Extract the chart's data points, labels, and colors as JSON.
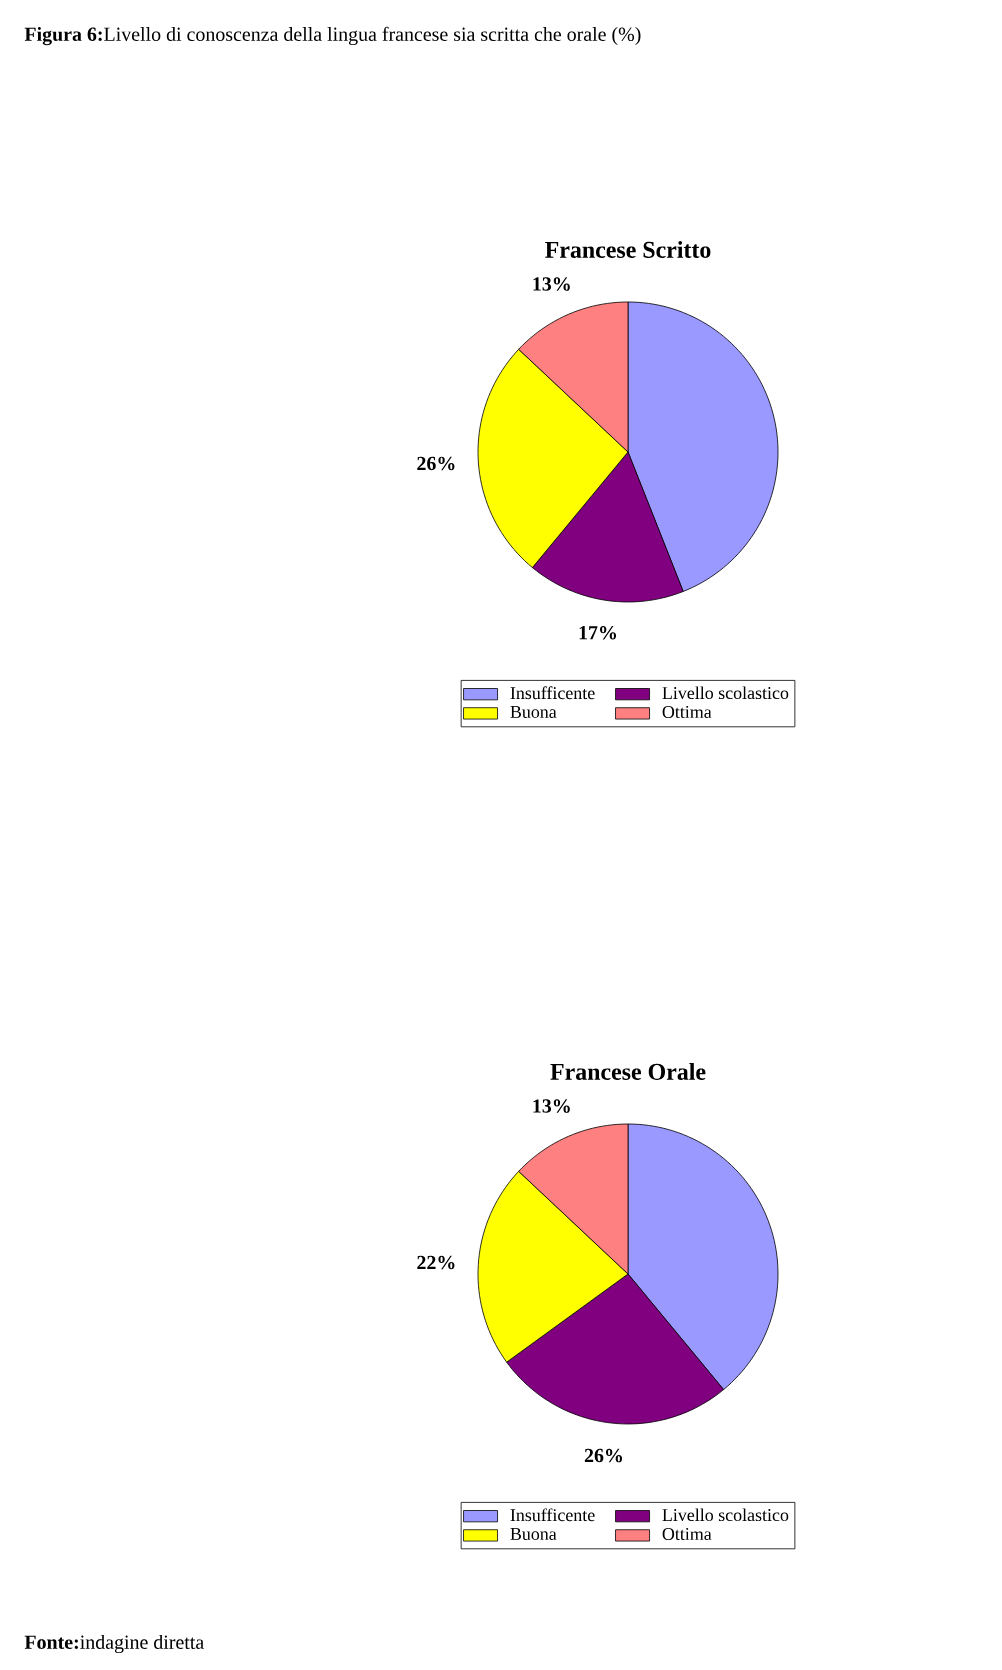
{
  "chart_data": [
    {
      "type": "pie",
      "title": "Francese Scritto",
      "categories": [
        "Insufficente",
        "Livello scolastico",
        "Buona",
        "Ottima"
      ],
      "values": [
        44,
        17,
        26,
        13
      ],
      "value_labels": [
        null,
        "17%",
        "26%",
        "13%"
      ],
      "colors": [
        "#9999ff",
        "#800080",
        "#ffff00",
        "#ff8080"
      ],
      "legend": "bottom",
      "annotations": [
        "**Figura 6:**Livello di conoscenza della lingua francese sia scritta che orale (%)"
      ]
    },
    {
      "type": "pie",
      "title": "Francese Orale",
      "categories": [
        "Insufficente",
        "Livello scolastico",
        "Buona",
        "Ottima"
      ],
      "values": [
        39,
        26,
        22,
        13
      ],
      "value_labels": [
        null,
        "26%",
        "22%",
        "13%"
      ],
      "colors": [
        "#9999ff",
        "#800080",
        "#ffff00",
        "#ff8080"
      ],
      "legend": "bottom",
      "annotations": [
        "**Fonte:**indagine diretta"
      ]
    }
  ]
}
